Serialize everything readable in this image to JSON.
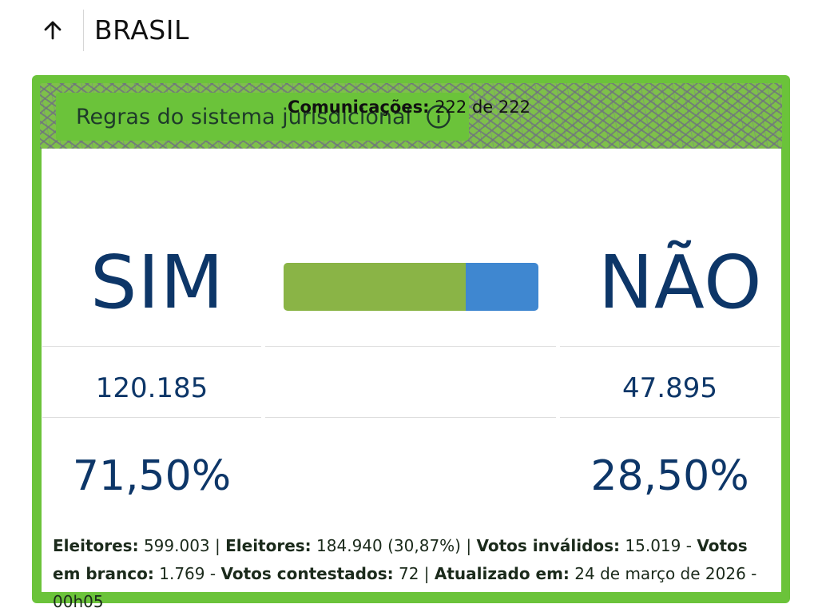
{
  "header": {
    "title": "BRASIL",
    "back_icon": "arrow-up-icon"
  },
  "rules": {
    "label": "Regras do sistema jurisdicional",
    "icon": "info-icon"
  },
  "communications": {
    "label": "Comunicações:",
    "value": "222 de 222"
  },
  "options": {
    "sim": {
      "label": "SIM",
      "count": "120.185",
      "percent": "71,50%",
      "share": 0.715,
      "color": "#8ab446"
    },
    "nao": {
      "label": "NÃO",
      "count": "47.895",
      "percent": "28,50%",
      "share": 0.285,
      "color": "#3f87d0"
    }
  },
  "footer": {
    "electors_label": "Eleitores:",
    "electors_value": "599.003",
    "voters_label": "Eleitores:",
    "voters_value": "184.940 (30,87%)",
    "invalid_label": "Votos inválidos:",
    "invalid_value": "15.019",
    "blank_label": "Votos em branco:",
    "blank_value": "1.769",
    "contested_label": "Votos contestados:",
    "contested_value": "72",
    "updated_label": "Atualizado em:",
    "updated_value": "24 de março de 2026 - 00h05"
  },
  "colors": {
    "accent_green": "#6bc33a",
    "text_navy": "#0d3668"
  }
}
